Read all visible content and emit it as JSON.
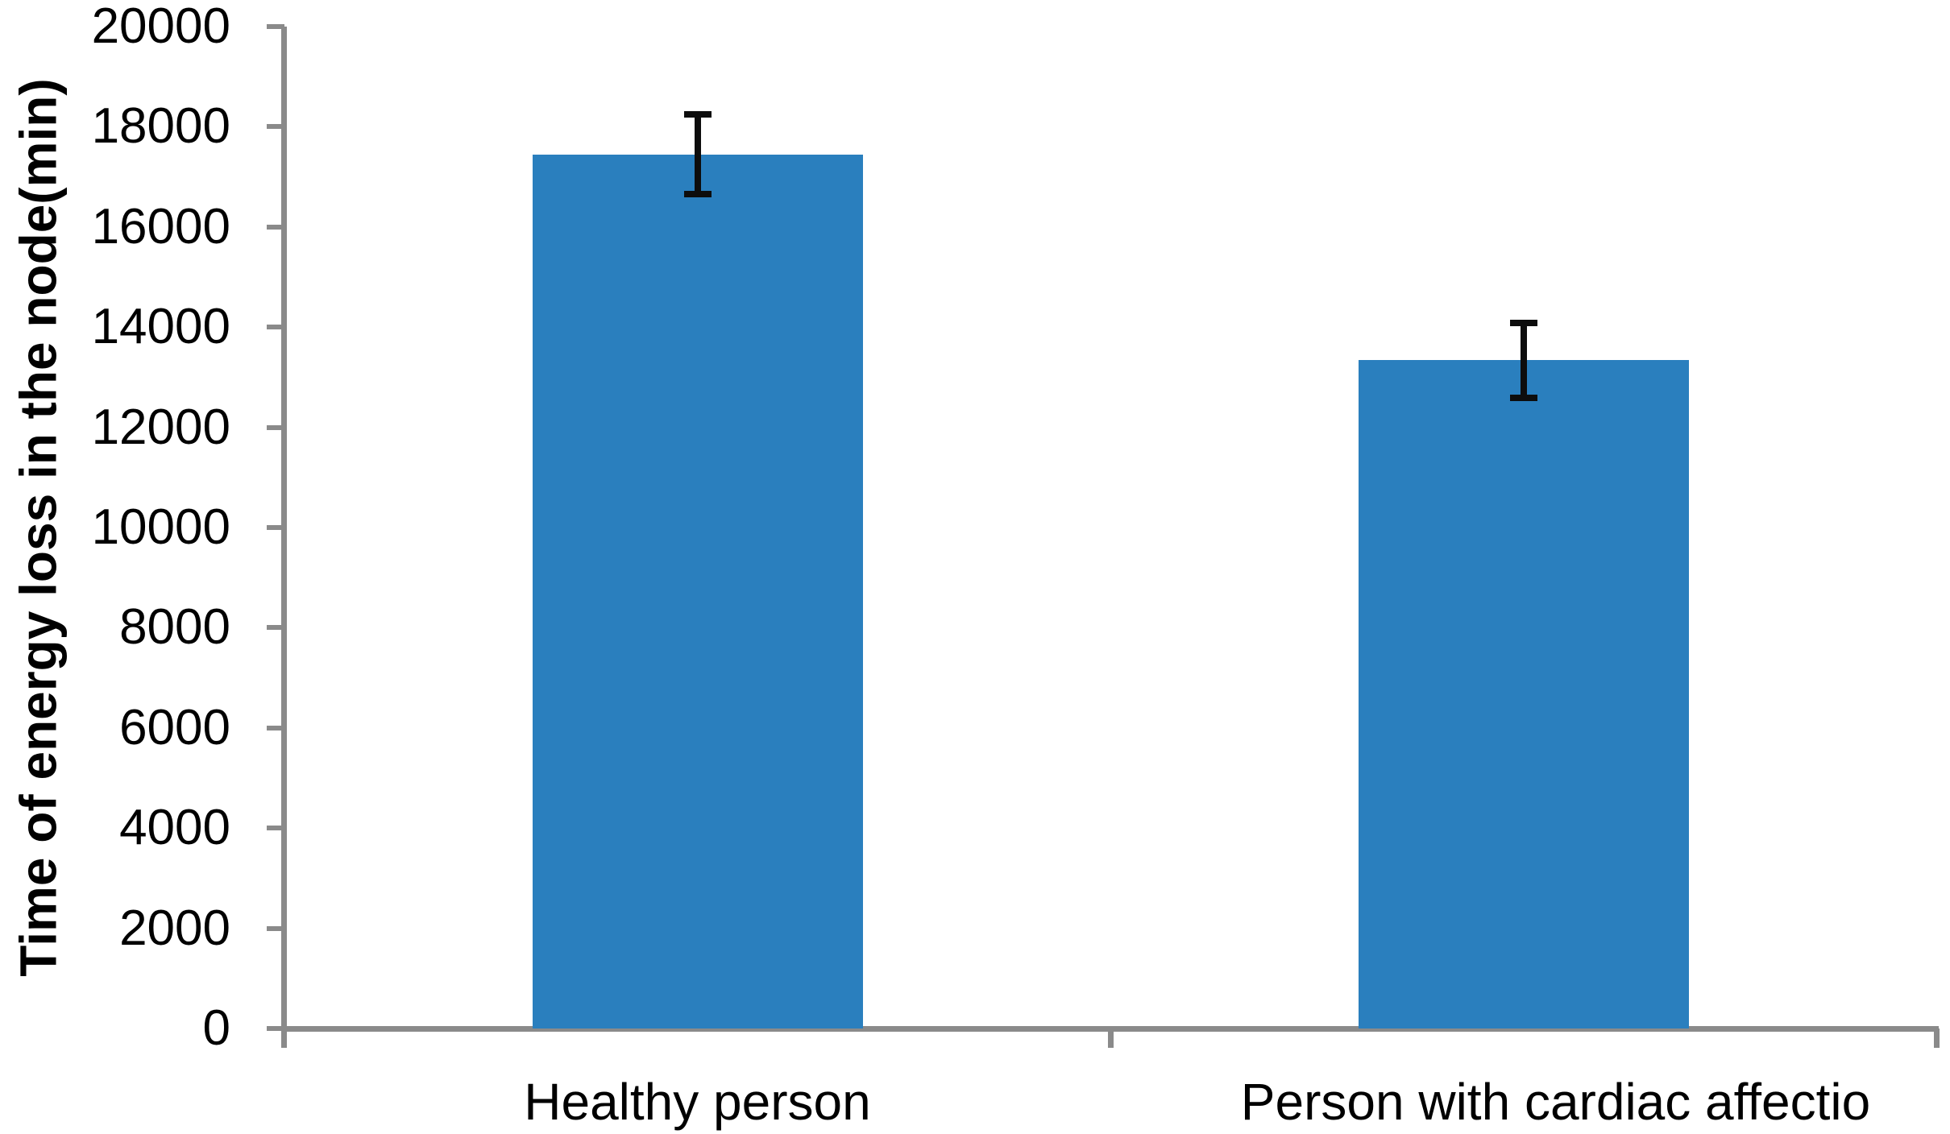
{
  "chart_data": {
    "type": "bar",
    "categories": [
      "Healthy person",
      "Person with cardiac affectio"
    ],
    "values": [
      17450,
      13340
    ],
    "error_bars": [
      800,
      750
    ],
    "title": "",
    "xlabel": "",
    "ylabel": "Time of energy loss in the node(min)",
    "ylim": [
      0,
      20000
    ],
    "ytick_step": 2000,
    "yticks": [
      0,
      2000,
      4000,
      6000,
      8000,
      10000,
      12000,
      14000,
      16000,
      18000,
      20000
    ],
    "ytick_labels": [
      "0",
      "2000",
      "4000",
      "6000",
      "8000",
      "10000",
      "12000",
      "14000",
      "16000",
      "18000",
      "20000"
    ],
    "legend_position": "none",
    "grid": false,
    "colors": {
      "bar": "#2a7fbe",
      "axis": "#8a8a8a",
      "error_bar": "#0d0d0d",
      "text": "#000000",
      "background": "#ffffff"
    }
  }
}
